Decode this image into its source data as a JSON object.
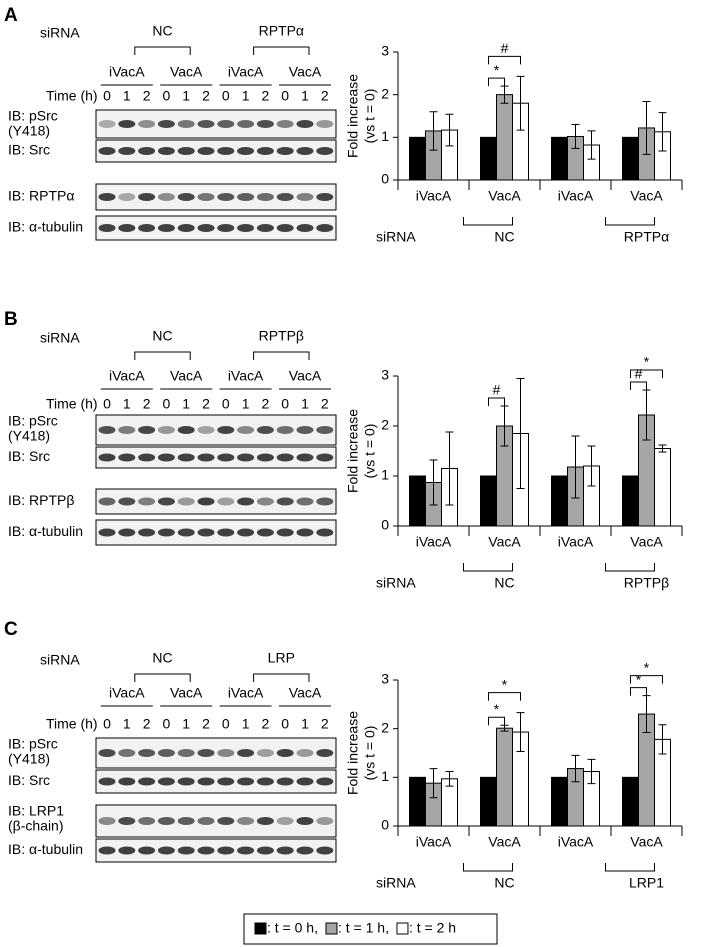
{
  "legend": [
    {
      "label": ": t = 0 h,",
      "color": "#000000"
    },
    {
      "label": ": t = 1 h,",
      "color": "#a6a6a6"
    },
    {
      "label": ": t = 2 h",
      "color": "#ffffff"
    }
  ],
  "panels": [
    {
      "letter": "A",
      "blot": {
        "siRNA": "siRNA",
        "groups": [
          "NC",
          "RPTPα"
        ],
        "subgroups": [
          "iVacA",
          "VacA",
          "iVacA",
          "VacA"
        ],
        "time_label": "Time (h)",
        "times": [
          0,
          1,
          2
        ],
        "rows": [
          [
            "IB: pSrc",
            "(Y418)"
          ],
          [
            "IB: Src"
          ],
          [
            "IB: RPTPα"
          ],
          [
            "IB: α-tubulin"
          ]
        ]
      }
    },
    {
      "letter": "B",
      "blot": {
        "siRNA": "siRNA",
        "groups": [
          "NC",
          "RPTPβ"
        ],
        "subgroups": [
          "iVacA",
          "VacA",
          "iVacA",
          "VacA"
        ],
        "time_label": "Time (h)",
        "times": [
          0,
          1,
          2
        ],
        "rows": [
          [
            "IB: pSrc",
            "(Y418)"
          ],
          [
            "IB: Src"
          ],
          [
            "IB: RPTPβ"
          ],
          [
            "IB: α-tubulin"
          ]
        ]
      }
    },
    {
      "letter": "C",
      "blot": {
        "siRNA": "siRNA",
        "groups": [
          "NC",
          "LRP"
        ],
        "subgroups": [
          "iVacA",
          "VacA",
          "iVacA",
          "VacA"
        ],
        "time_label": "Time (h)",
        "times": [
          0,
          1,
          2
        ],
        "rows": [
          [
            "IB: pSrc",
            "(Y418)"
          ],
          [
            "IB: Src"
          ],
          [
            "IB: LRP1",
            "(β-chain)"
          ],
          [
            "IB: α-tubulin"
          ]
        ]
      }
    }
  ],
  "chart_data": [
    {
      "type": "bar",
      "y_label": [
        "Fold increase",
        "(vs t = 0)"
      ],
      "categories": [
        "iVacA",
        "VacA",
        "iVacA",
        "VacA"
      ],
      "siRNA_label": "siRNA",
      "groups": [
        "NC",
        "RPTPα"
      ],
      "ylim": [
        0,
        3
      ],
      "yticks": [
        0,
        1,
        2,
        3
      ],
      "series": [
        {
          "color": "#000000",
          "values": [
            1,
            1,
            1,
            1
          ]
        },
        {
          "color": "#a6a6a6",
          "values": [
            1.15,
            2.0,
            1.02,
            1.22
          ],
          "errors": [
            0.45,
            0.2,
            0.28,
            0.62
          ]
        },
        {
          "color": "#ffffff",
          "values": [
            1.17,
            1.8,
            0.82,
            1.13
          ],
          "errors": [
            0.37,
            0.63,
            0.33,
            0.45
          ]
        }
      ],
      "annotations": [
        {
          "text": "*",
          "category": 1,
          "pair": [
            0,
            1
          ]
        },
        {
          "text": "#",
          "category": 1,
          "pair": [
            0,
            2
          ]
        }
      ]
    },
    {
      "type": "bar",
      "y_label": [
        "Fold increase",
        "(vs t = 0)"
      ],
      "categories": [
        "iVacA",
        "VacA",
        "iVacA",
        "VacA"
      ],
      "siRNA_label": "siRNA",
      "groups": [
        "NC",
        "RPTPβ"
      ],
      "ylim": [
        0,
        3
      ],
      "yticks": [
        0,
        1,
        2,
        3
      ],
      "series": [
        {
          "color": "#000000",
          "values": [
            1,
            1,
            1,
            1
          ]
        },
        {
          "color": "#a6a6a6",
          "values": [
            0.87,
            2.0,
            1.18,
            2.22
          ],
          "errors": [
            0.45,
            0.4,
            0.62,
            0.5
          ]
        },
        {
          "color": "#ffffff",
          "values": [
            1.15,
            1.85,
            1.2,
            1.55
          ],
          "errors": [
            0.73,
            1.1,
            0.4,
            0.07
          ]
        }
      ],
      "annotations": [
        {
          "text": "#",
          "category": 1,
          "pair": [
            0,
            1
          ]
        },
        {
          "text": "#",
          "category": 3,
          "pair": [
            0,
            1
          ]
        },
        {
          "text": "*",
          "category": 3,
          "pair": [
            0,
            2
          ]
        }
      ]
    },
    {
      "type": "bar",
      "y_label": [
        "Fold increase",
        "(vs t = 0)"
      ],
      "categories": [
        "iVacA",
        "VacA",
        "iVacA",
        "VacA"
      ],
      "siRNA_label": "siRNA",
      "groups": [
        "NC",
        "LRP1"
      ],
      "ylim": [
        0,
        3
      ],
      "yticks": [
        0,
        1,
        2,
        3
      ],
      "series": [
        {
          "color": "#000000",
          "values": [
            1,
            1,
            1,
            1
          ]
        },
        {
          "color": "#a6a6a6",
          "values": [
            0.88,
            2.01,
            1.18,
            2.3
          ],
          "errors": [
            0.3,
            0.06,
            0.27,
            0.38
          ]
        },
        {
          "color": "#ffffff",
          "values": [
            0.97,
            1.93,
            1.12,
            1.78
          ],
          "errors": [
            0.15,
            0.4,
            0.25,
            0.3
          ]
        }
      ],
      "annotations": [
        {
          "text": "*",
          "category": 1,
          "pair": [
            0,
            1
          ]
        },
        {
          "text": "*",
          "category": 1,
          "pair": [
            0,
            2
          ]
        },
        {
          "text": "*",
          "category": 3,
          "pair": [
            0,
            1
          ]
        },
        {
          "text": "*",
          "category": 3,
          "pair": [
            0,
            2
          ]
        }
      ]
    }
  ]
}
